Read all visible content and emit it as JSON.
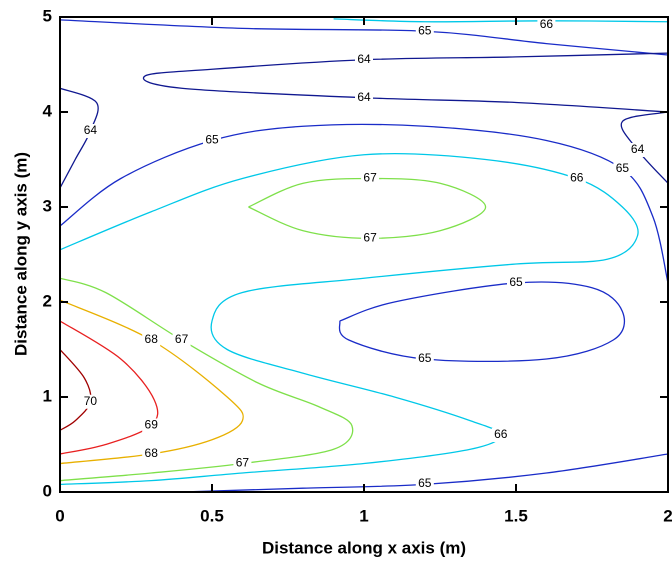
{
  "chart_data": {
    "type": "contour",
    "x_label": "Distance along x axis (m)",
    "y_label": "Distance along y axis (m)",
    "xlim": [
      0,
      2
    ],
    "xticks": [
      0,
      0.5,
      1,
      1.5,
      2
    ],
    "ylim": [
      0,
      5
    ],
    "yticks": [
      0,
      1,
      2,
      3,
      4,
      5
    ],
    "contours": [
      {
        "level": 66,
        "color": "#00c8e8",
        "x": [
          0.9,
          1.2,
          1.6,
          2.0
        ],
        "y": [
          4.98,
          4.95,
          4.96,
          4.95
        ]
      },
      {
        "level": 65,
        "color": "#1a2cc8",
        "x": [
          0.0,
          0.6,
          1.2,
          1.6,
          2.0
        ],
        "y": [
          4.97,
          4.88,
          4.85,
          4.72,
          4.6
        ]
      },
      {
        "level": 64,
        "color": "#101890",
        "x": [
          2.0,
          1.5,
          1.0,
          0.5,
          0.28,
          0.4,
          1.0,
          1.5,
          2.0
        ],
        "y": [
          4.62,
          4.58,
          4.55,
          4.45,
          4.38,
          4.25,
          4.15,
          4.1,
          4.0
        ]
      },
      {
        "level": 64,
        "color": "#101890",
        "x": [
          0,
          0.12,
          0.1,
          0.05,
          0
        ],
        "y": [
          4.25,
          4.1,
          3.8,
          3.5,
          3.2
        ]
      },
      {
        "level": 64,
        "color": "#101890",
        "x": [
          2.0,
          1.85,
          1.9,
          2.0
        ],
        "y": [
          4.0,
          3.9,
          3.6,
          3.25
        ]
      },
      {
        "level": 65,
        "color": "#1a2cc8",
        "x": [
          0,
          0.2,
          0.5,
          0.8,
          1.2,
          1.6,
          1.85,
          1.95,
          2.0
        ],
        "y": [
          2.8,
          3.3,
          3.7,
          3.85,
          3.85,
          3.7,
          3.4,
          2.9,
          2.2
        ]
      },
      {
        "level": 66,
        "color": "#00c8e8",
        "x": [
          0,
          0.3,
          0.6,
          1.0,
          1.4,
          1.7,
          1.85,
          1.9,
          1.8,
          1.5,
          1.0,
          0.6,
          0.5,
          0.55,
          0.8,
          1.1,
          1.35,
          1.45,
          1.35,
          1.0,
          0.6,
          0.3,
          0
        ],
        "y": [
          2.55,
          2.95,
          3.3,
          3.55,
          3.5,
          3.3,
          3.0,
          2.7,
          2.45,
          2.4,
          2.25,
          2.1,
          1.8,
          1.5,
          1.25,
          1.0,
          0.75,
          0.6,
          0.45,
          0.3,
          0.2,
          0.12,
          0.08
        ]
      },
      {
        "level": 67,
        "color": "#7ee04a",
        "x": [
          0.62,
          0.8,
          1.02,
          1.25,
          1.4,
          1.25,
          1.02,
          0.8,
          0.62
        ],
        "y": [
          3.0,
          3.25,
          3.3,
          3.25,
          3.0,
          2.75,
          2.67,
          2.75,
          3.0
        ]
      },
      {
        "level": 67,
        "color": "#7ee04a",
        "x": [
          0,
          0.15,
          0.4,
          0.65,
          0.85,
          0.96,
          0.9,
          0.6,
          0.3,
          0
        ],
        "y": [
          2.25,
          2.1,
          1.6,
          1.15,
          0.9,
          0.7,
          0.45,
          0.3,
          0.2,
          0.12
        ]
      },
      {
        "level": 68,
        "color": "#e8b000",
        "x": [
          0,
          0.3,
          0.55,
          0.6,
          0.5,
          0.3,
          0
        ],
        "y": [
          2.02,
          1.6,
          1.0,
          0.75,
          0.55,
          0.4,
          0.3
        ]
      },
      {
        "level": 69,
        "color": "#e82020",
        "x": [
          0,
          0.2,
          0.31,
          0.3,
          0.15,
          0
        ],
        "y": [
          1.8,
          1.4,
          0.97,
          0.7,
          0.5,
          0.4
        ]
      },
      {
        "level": 70,
        "color": "#a00000",
        "x": [
          0,
          0.08,
          0.1,
          0.05,
          0
        ],
        "y": [
          1.5,
          1.2,
          0.95,
          0.75,
          0.65
        ]
      },
      {
        "level": 65,
        "color": "#1a2cc8",
        "x": [
          0.92,
          1.1,
          1.5,
          1.75,
          1.85,
          1.82,
          1.6,
          1.2,
          0.95,
          0.92
        ],
        "y": [
          1.8,
          2.0,
          2.2,
          2.15,
          1.9,
          1.6,
          1.4,
          1.4,
          1.6,
          1.8
        ]
      },
      {
        "level": 65,
        "color": "#1a2cc8",
        "x": [
          0.4,
          0.8,
          1.2,
          1.6,
          2.0
        ],
        "y": [
          0,
          0.04,
          0.08,
          0.2,
          0.4
        ]
      }
    ]
  }
}
